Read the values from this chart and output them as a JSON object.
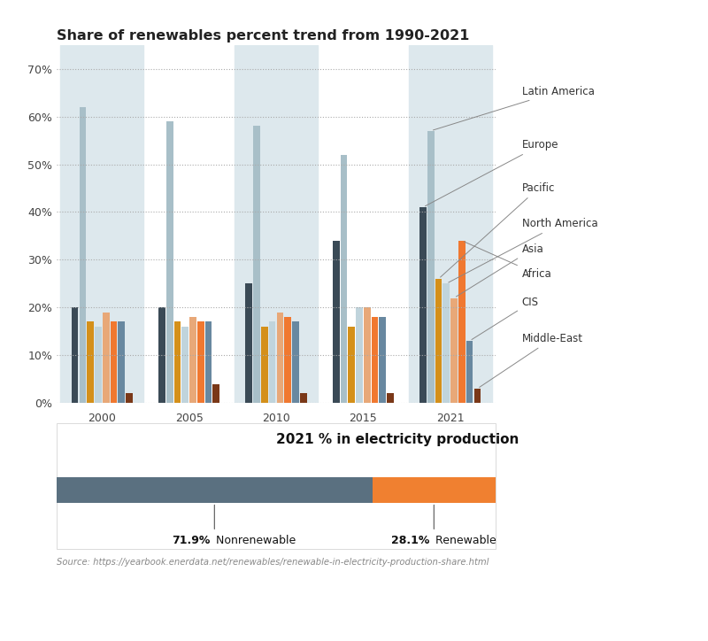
{
  "title": "Share of renewables percent trend from 1990-2021",
  "years": [
    "2000",
    "2005",
    "2010",
    "2015",
    "2021"
  ],
  "shaded_groups": [
    0,
    2,
    4
  ],
  "regions": [
    "Europe",
    "Latin America",
    "Pacific",
    "North America",
    "Asia",
    "Africa",
    "CIS",
    "Middle-East"
  ],
  "colors": {
    "Europe": "#3a4a56",
    "Latin America": "#a8bfc8",
    "Pacific": "#d4901a",
    "North America": "#c0d4dc",
    "Asia": "#e8a878",
    "Africa": "#f07830",
    "CIS": "#6888a0",
    "Middle-East": "#7a3818"
  },
  "data": {
    "Europe": [
      20,
      20,
      25,
      34,
      41
    ],
    "Latin America": [
      62,
      59,
      58,
      52,
      57
    ],
    "Pacific": [
      17,
      17,
      16,
      16,
      26
    ],
    "North America": [
      16,
      16,
      17,
      20,
      25
    ],
    "Asia": [
      19,
      18,
      19,
      20,
      22
    ],
    "Africa": [
      17,
      17,
      18,
      18,
      34
    ],
    "CIS": [
      17,
      17,
      17,
      18,
      13
    ],
    "Middle-East": [
      2,
      4,
      2,
      2,
      3
    ]
  },
  "background_color_groups": "#dde8ed",
  "background_main": "#ffffff",
  "ylim": [
    0,
    75
  ],
  "yticks": [
    0,
    10,
    20,
    30,
    40,
    50,
    60,
    70
  ],
  "ytick_labels": [
    "0%",
    "10%",
    "20%",
    "30%",
    "40%",
    "50%",
    "60%",
    "70%"
  ],
  "bar_subtitle": "2021 % in electricity production",
  "nonrenewable_pct": 71.9,
  "renewable_pct": 28.1,
  "nonrenewable_color": "#5a7080",
  "renewable_color": "#f08030",
  "source_text": "Source: https://yearbook.enerdata.net/renewables/renewable-in-electricity-production-share.html",
  "legend_order": [
    "Latin America",
    "Europe",
    "Pacific",
    "North America",
    "Asia",
    "Africa",
    "CIS",
    "Middle-East"
  ],
  "legend_y_data": {
    "Latin America": 57,
    "Europe": 41,
    "Pacific": 26,
    "North America": 25,
    "Asia": 22,
    "Africa": 34,
    "CIS": 13,
    "Middle-East": 3
  },
  "legend_text_y_frac": {
    "Latin America": 0.87,
    "Europe": 0.72,
    "Pacific": 0.6,
    "North America": 0.5,
    "Asia": 0.43,
    "Africa": 0.36,
    "CIS": 0.28,
    "Middle-East": 0.18
  }
}
